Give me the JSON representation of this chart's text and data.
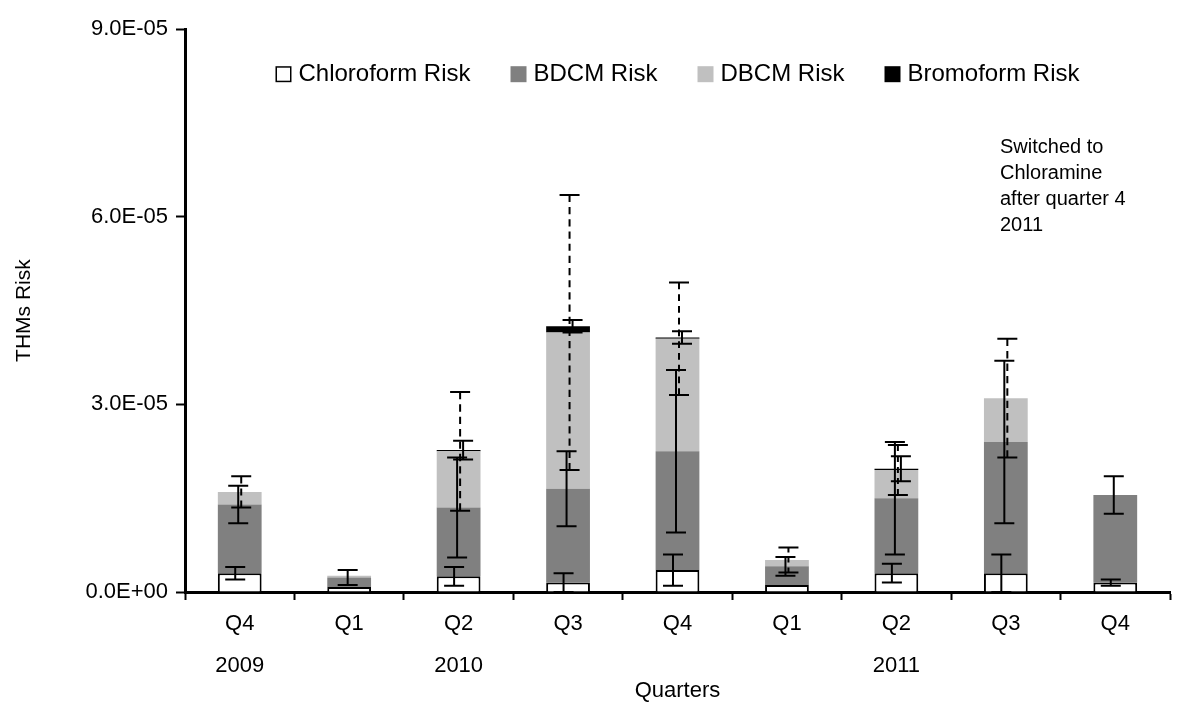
{
  "chart_data": {
    "type": "bar",
    "xlabel": "Quarters",
    "ylabel": "THMs Risk",
    "categories": [
      "Q4 2009",
      "Q1",
      "Q2 2010",
      "Q3",
      "Q4",
      "Q1",
      "Q2 2011",
      "Q3",
      "Q4"
    ],
    "stacked": true,
    "legend": "top",
    "ylim": [
      0,
      9e-05
    ],
    "yticks": [
      {
        "value": 0,
        "label": "0.0E+00"
      },
      {
        "value": 3e-05,
        "label": "3.0E-05"
      },
      {
        "value": 6e-05,
        "label": "6.0E-05"
      },
      {
        "value": 9e-05,
        "label": "9.0E-05"
      }
    ],
    "series": [
      {
        "name": "Chloroform Risk",
        "color": "#ffffff",
        "values": [
          3e-06,
          8e-07,
          2.5e-06,
          1.5e-06,
          3.5e-06,
          1.1e-06,
          3e-06,
          3e-06,
          1.5e-06
        ],
        "errors": [
          1e-06,
          null,
          1.5e-06,
          1.5e-06,
          2.5e-06,
          null,
          1.5e-06,
          3e-06,
          5e-07
        ]
      },
      {
        "name": "BDCM Risk",
        "color": "#808080",
        "values": [
          1.1e-05,
          1.5e-06,
          1.1e-05,
          1.5e-05,
          1.9e-05,
          3e-06,
          1.2e-05,
          2.1e-05,
          1.4e-05
        ],
        "errors": [
          3e-06,
          1.2e-06,
          8e-06,
          6e-06,
          1.3e-05,
          1.5e-06,
          9e-06,
          1.3e-05,
          3e-06
        ]
      },
      {
        "name": "DBCM Risk",
        "color": "#c0c0c0",
        "line_style": "dashed",
        "values": [
          2e-06,
          3e-07,
          9e-06,
          2.5e-05,
          1.8e-05,
          1e-06,
          4.5e-06,
          7e-06,
          0
        ],
        "errors": [
          2.5e-06,
          null,
          9.5e-06,
          2.2e-05,
          9e-06,
          2e-06,
          4e-06,
          9.5e-06,
          null
        ]
      },
      {
        "name": "Bromoform Risk",
        "color": "#000000",
        "values": [
          0,
          0,
          2e-07,
          1e-06,
          2e-07,
          0,
          2e-07,
          0,
          0
        ],
        "errors": [
          null,
          null,
          1.5e-06,
          1e-06,
          1e-06,
          null,
          2e-06,
          null,
          null
        ]
      }
    ],
    "annotations": [
      "Switched to Chloramine after quarter 4 2011"
    ]
  }
}
